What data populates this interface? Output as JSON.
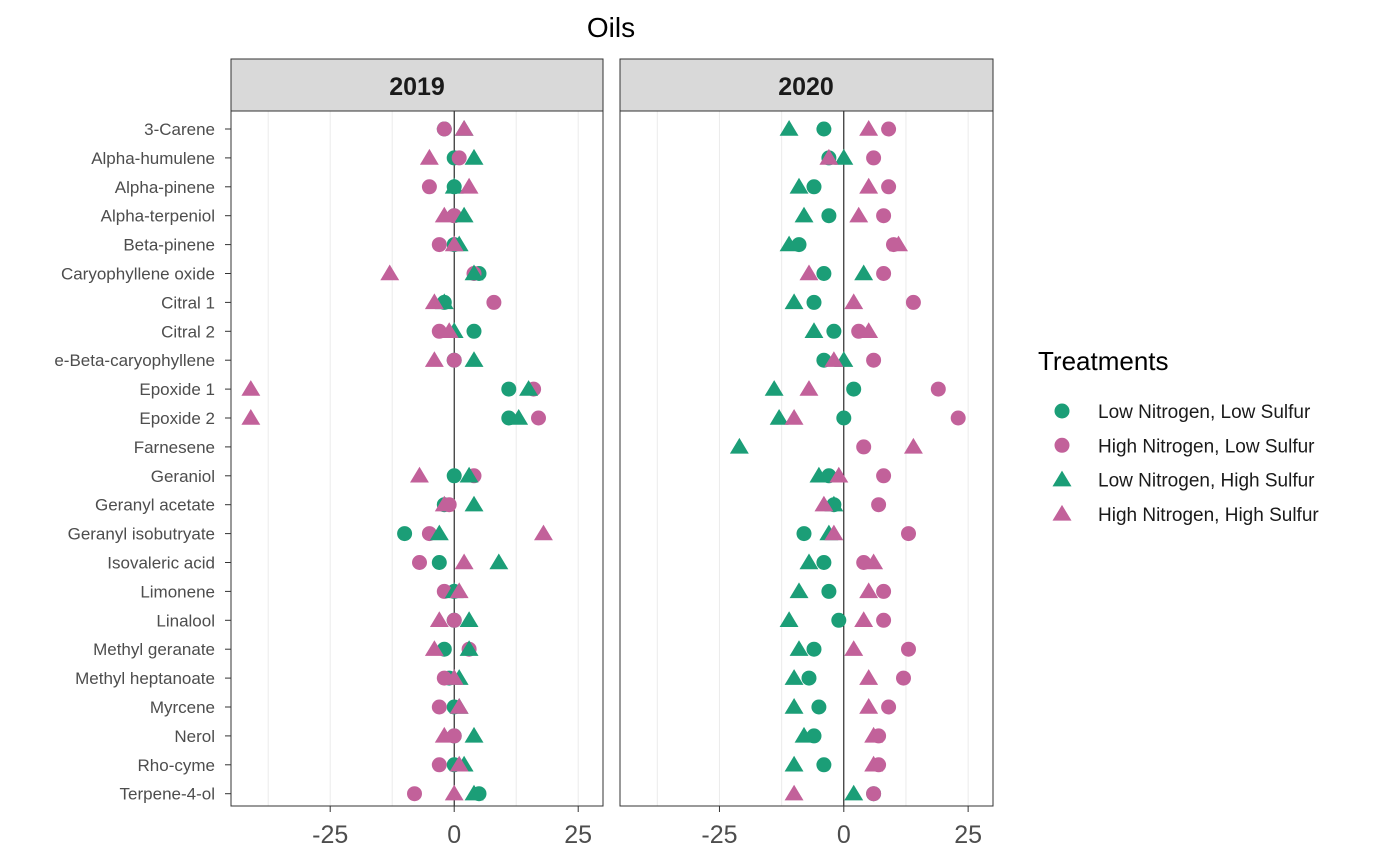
{
  "chart_data": {
    "type": "scatter",
    "title": "Oils",
    "xlim": [
      -45,
      30
    ],
    "x_ticks": [
      -25,
      0,
      25
    ],
    "x_tick_labels": [
      "-25",
      "0",
      "25"
    ],
    "grid": true,
    "legend_position": "right",
    "categories": [
      "3-Carene",
      "Alpha-humulene",
      "Alpha-pinene",
      "Alpha-terpeniol",
      "Beta-pinene",
      "Caryophyllene oxide",
      "Citral 1",
      "Citral 2",
      "e-Beta-caryophyllene",
      "Epoxide 1",
      "Epoxide 2",
      "Farnesene",
      "Geraniol",
      "Geranyl acetate",
      "Geranyl isobutryate",
      "Isovaleric acid",
      "Limonene",
      "Linalool",
      "Methyl geranate",
      "Methyl heptanoate",
      "Myrcene",
      "Nerol",
      "Rho-cyme",
      "Terpene-4-ol"
    ],
    "legend": {
      "title": "Treatments",
      "entries": [
        {
          "label": "Low Nitrogen, Low Sulfur",
          "color": "#1b9e77",
          "shape": "circle"
        },
        {
          "label": "High Nitrogen, Low Sulfur",
          "color": "#c2619a",
          "shape": "circle"
        },
        {
          "label": "Low Nitrogen, High Sulfur",
          "color": "#1b9e77",
          "shape": "triangle"
        },
        {
          "label": "High Nitrogen, High Sulfur",
          "color": "#c2619a",
          "shape": "triangle"
        }
      ]
    },
    "panels": [
      {
        "label": "2019",
        "series": [
          {
            "values": [
              -2,
              0,
              0,
              0,
              0,
              5,
              -2,
              4,
              0,
              11,
              11,
              null,
              0,
              -2,
              -10,
              -3,
              0,
              0,
              -2,
              -1,
              0,
              0,
              0,
              5
            ]
          },
          {
            "values": [
              -2,
              1,
              -5,
              0,
              -3,
              4,
              8,
              -3,
              0,
              16,
              17,
              null,
              4,
              -1,
              -5,
              -7,
              -2,
              0,
              3,
              -2,
              -3,
              0,
              -3,
              -8
            ]
          },
          {
            "values": [
              2,
              4,
              0,
              2,
              1,
              4,
              -2,
              0,
              4,
              15,
              13,
              null,
              3,
              4,
              -3,
              9,
              0,
              3,
              3,
              1,
              1,
              4,
              2,
              4
            ]
          },
          {
            "values": [
              2,
              -5,
              3,
              -2,
              0,
              -13,
              -4,
              -1,
              -4,
              -41,
              -41,
              null,
              -7,
              -2,
              18,
              2,
              1,
              -3,
              -4,
              0,
              1,
              -2,
              1,
              0
            ]
          }
        ]
      },
      {
        "label": "2020",
        "series": [
          {
            "values": [
              -4,
              -3,
              -6,
              -3,
              -9,
              -4,
              -6,
              -2,
              -4,
              2,
              0,
              null,
              -3,
              -2,
              -8,
              -4,
              -3,
              -1,
              -6,
              -7,
              -5,
              -6,
              -4,
              6
            ]
          },
          {
            "values": [
              9,
              6,
              9,
              8,
              10,
              8,
              14,
              3,
              6,
              19,
              23,
              4,
              8,
              7,
              13,
              4,
              8,
              8,
              13,
              12,
              9,
              7,
              7,
              6
            ]
          },
          {
            "values": [
              -11,
              0,
              -9,
              -8,
              -11,
              4,
              -10,
              -6,
              0,
              -14,
              -13,
              -21,
              -5,
              -2,
              -3,
              -7,
              -9,
              -11,
              -9,
              -10,
              -10,
              -8,
              -10,
              2
            ]
          },
          {
            "values": [
              5,
              -3,
              5,
              3,
              11,
              -7,
              2,
              5,
              -2,
              -7,
              -10,
              14,
              -1,
              -4,
              -2,
              6,
              5,
              4,
              2,
              5,
              5,
              6,
              6,
              -10
            ]
          }
        ]
      }
    ]
  }
}
